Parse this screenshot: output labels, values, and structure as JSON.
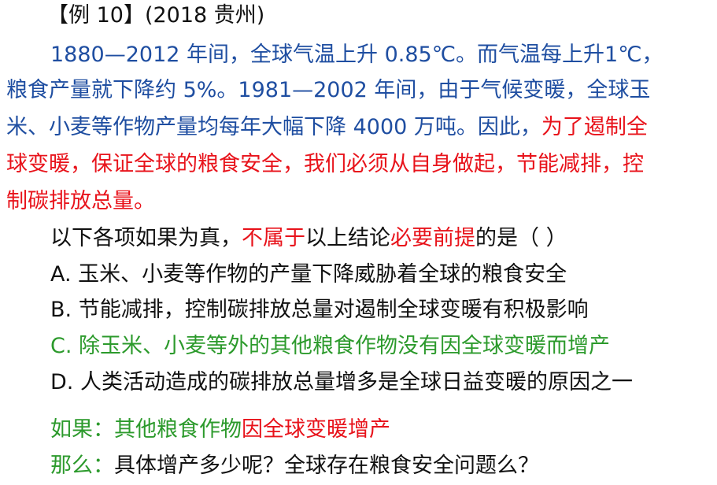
{
  "header": {
    "example": "【例 10】",
    "source": "(2018 贵州)"
  },
  "passage": {
    "line1": "1880—2012 年间，全球气温上升 0.85℃。而气温每上升1℃，",
    "line2": "粮食产量就下降约 5%。1981—2002 年间，由于气候变暖，全球玉",
    "line3_blue": "米、小麦等作物产量均每年大幅下降 4000 万吨。因此，",
    "line3_red": "为了遏制全",
    "line4": "球变暖，保证全球的粮食安全，我们必须从自身做起，节能减排，控",
    "line5": "制碳排放总量。"
  },
  "question": {
    "part1": "以下各项如果为真，",
    "part2": "不属于",
    "part3": "以上结论",
    "part4": "必要前提",
    "part5": "的是（ ）"
  },
  "options": {
    "a": "A. 玉米、小麦等作物的产量下降威胁着全球的粮食安全",
    "b": "B. 节能减排，控制碳排放总量对遏制全球变暖有积极影响",
    "c": "C. 除玉米、小麦等外的其他粮食作物没有因全球变暖而增产",
    "d": "D. 人类活动造成的碳排放总量增多是全球日益变暖的原因之一"
  },
  "analysis": {
    "if_label": "如果：",
    "if_text_green": "其他粮食作物",
    "if_text_red": "因全球变暖增产",
    "then_label": "那么：",
    "then_text": "具体增产多少呢？全球存在粮食安全问题么？"
  },
  "colors": {
    "blue": "#1f4ea1",
    "red": "#e8131b",
    "green": "#2c9a2c",
    "black": "#111111"
  }
}
